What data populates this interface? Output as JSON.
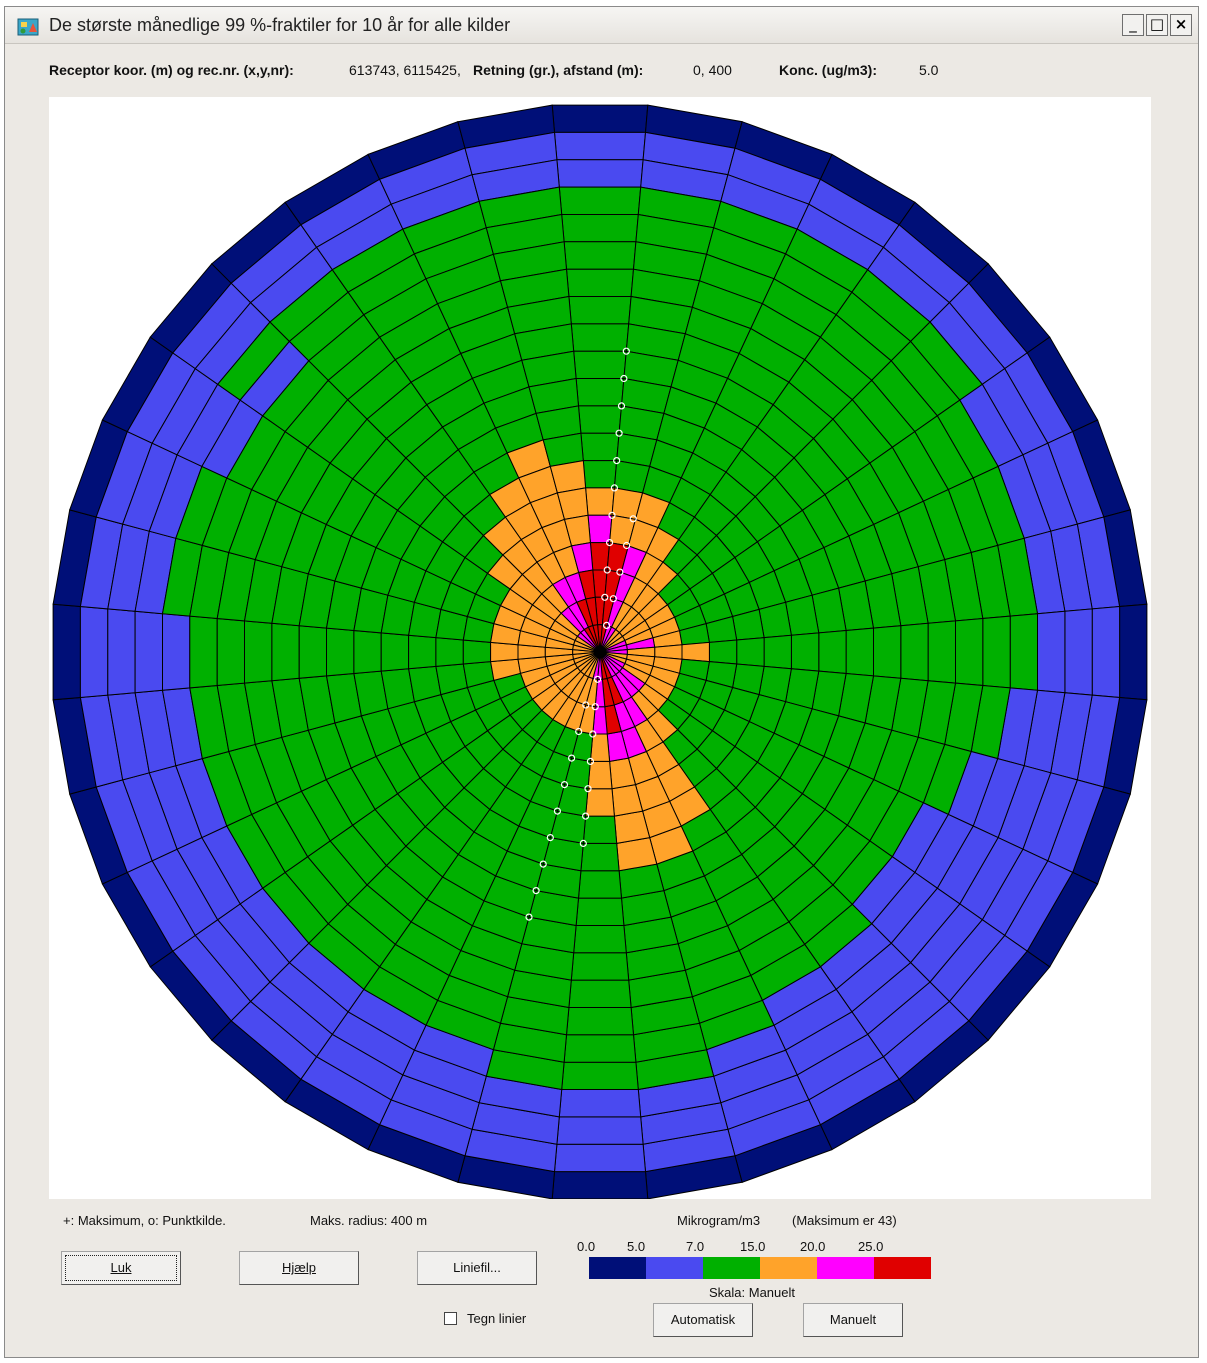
{
  "window": {
    "title": "De største månedlige 99 %-fraktiler for 10 år for alle kilder",
    "controls": {
      "minimize": "_",
      "maximize": "□",
      "close": "×"
    }
  },
  "info_bar": {
    "receptor_label": "Receptor koor. (m) og rec.nr. (x,y,nr):",
    "receptor_value": "613743, 6115425,",
    "direction_label": "Retning (gr.), afstand (m):",
    "direction_value": "0, 400",
    "conc_label": "Konc. (ug/m3):",
    "conc_value": "5.0"
  },
  "footer": {
    "legend_markers": "+: Maksimum, o: Punktkilde.",
    "max_radius": "Maks. radius: 400 m",
    "unit": "Mikrogram/m3",
    "maximum": "(Maksimum er 43)",
    "scale_mode": "Skala: Manuelt",
    "draw_lines_label": "Tegn linier"
  },
  "buttons": {
    "close": "Luk",
    "help": "Hjælp",
    "lines": "Liniefil...",
    "auto": "Automatisk",
    "manual": "Manuelt"
  },
  "color_scale": {
    "thresholds": [
      "0.0",
      "5.0",
      "7.0",
      "15.0",
      "20.0",
      "25.0"
    ],
    "colors": [
      "#000f78",
      "#4a4af0",
      "#00b000",
      "#ffa32a",
      "#ff00ff",
      "#e00000"
    ]
  },
  "chart_data": {
    "type": "heatmap",
    "grid": "polar",
    "sectors": 36,
    "rings": 20,
    "max_radius_m": 400,
    "grid_lines": true,
    "cells_by_ring": [
      [
        "d",
        "d",
        "d",
        "d",
        "d",
        "d",
        "d",
        "d",
        "d",
        "d",
        "d",
        "d",
        "d",
        "d",
        "d",
        "d",
        "d",
        "d",
        "d",
        "d",
        "d",
        "d",
        "d",
        "d",
        "d",
        "d",
        "d",
        "d",
        "d",
        "d",
        "d",
        "d",
        "d",
        "d",
        "d",
        "d"
      ],
      [
        "b",
        "b",
        "b",
        "b",
        "b",
        "b",
        "b",
        "b",
        "b",
        "b",
        "b",
        "b",
        "b",
        "b",
        "b",
        "b",
        "b",
        "b",
        "b",
        "b",
        "b",
        "b",
        "b",
        "b",
        "b",
        "b",
        "b",
        "b",
        "b",
        "b",
        "b",
        "b",
        "b",
        "b",
        "b",
        "b"
      ],
      [
        "b",
        "b",
        "b",
        "b",
        "b",
        "b",
        "b",
        "b",
        "b",
        "b",
        "b",
        "b",
        "b",
        "b",
        "b",
        "b",
        "b",
        "b",
        "b",
        "b",
        "b",
        "b",
        "b",
        "b",
        "b",
        "b",
        "b",
        "b",
        "b",
        "b",
        "b",
        "b",
        "b",
        "b",
        "b",
        "b"
      ],
      [
        "g",
        "g",
        "g",
        "g",
        "g",
        "g",
        "b",
        "b",
        "b",
        "b",
        "b",
        "b",
        "b",
        "b",
        "b",
        "b",
        "b",
        "b",
        "b",
        "b",
        "b",
        "b",
        "b",
        "b",
        "b",
        "b",
        "b",
        "b",
        "b",
        "b",
        "b",
        "g",
        "g",
        "g",
        "g",
        "g"
      ],
      [
        "g",
        "g",
        "g",
        "g",
        "g",
        "g",
        "g",
        "g",
        "g",
        "g",
        "b",
        "b",
        "b",
        "b",
        "b",
        "b",
        "b",
        "g",
        "g",
        "g",
        "b",
        "b",
        "b",
        "b",
        "b",
        "b",
        "b",
        "b",
        "g",
        "g",
        "b",
        "b",
        "g",
        "g",
        "g",
        "g"
      ],
      [
        "g",
        "g",
        "g",
        "g",
        "g",
        "g",
        "g",
        "g",
        "g",
        "g",
        "g",
        "b",
        "b",
        "b",
        "b",
        "b",
        "g",
        "g",
        "g",
        "g",
        "g",
        "g",
        "g",
        "g",
        "g",
        "g",
        "g",
        "g",
        "g",
        "g",
        "g",
        "g",
        "g",
        "g",
        "g",
        "g"
      ],
      [
        "g",
        "g",
        "g",
        "g",
        "g",
        "g",
        "g",
        "g",
        "g",
        "g",
        "g",
        "g",
        "b",
        "b",
        "g",
        "g",
        "g",
        "g",
        "g",
        "g",
        "g",
        "g",
        "g",
        "g",
        "g",
        "g",
        "g",
        "g",
        "g",
        "g",
        "g",
        "g",
        "g",
        "g",
        "g",
        "g"
      ],
      [
        "g",
        "g",
        "g",
        "g",
        "g",
        "g",
        "g",
        "g",
        "g",
        "g",
        "g",
        "g",
        "g",
        "g",
        "g",
        "g",
        "g",
        "g",
        "g",
        "g",
        "g",
        "g",
        "g",
        "g",
        "g",
        "g",
        "g",
        "g",
        "g",
        "g",
        "g",
        "g",
        "g",
        "g",
        "g",
        "g"
      ],
      [
        "g",
        "g",
        "g",
        "g",
        "g",
        "g",
        "g",
        "g",
        "g",
        "g",
        "g",
        "g",
        "g",
        "g",
        "g",
        "g",
        "g",
        "g",
        "g",
        "g",
        "g",
        "g",
        "g",
        "g",
        "g",
        "g",
        "g",
        "g",
        "g",
        "g",
        "g",
        "g",
        "g",
        "g",
        "g",
        "g"
      ],
      [
        "g",
        "g",
        "g",
        "g",
        "g",
        "g",
        "g",
        "g",
        "g",
        "g",
        "g",
        "g",
        "g",
        "g",
        "g",
        "g",
        "g",
        "g",
        "g",
        "g",
        "g",
        "g",
        "g",
        "g",
        "g",
        "g",
        "g",
        "g",
        "g",
        "g",
        "g",
        "g",
        "g",
        "g",
        "g",
        "g"
      ],
      [
        "g",
        "g",
        "g",
        "g",
        "g",
        "g",
        "g",
        "g",
        "g",
        "g",
        "g",
        "g",
        "g",
        "g",
        "g",
        "g",
        "g",
        "g",
        "g",
        "g",
        "g",
        "g",
        "g",
        "g",
        "g",
        "g",
        "g",
        "g",
        "g",
        "g",
        "g",
        "g",
        "g",
        "g",
        "g",
        "g"
      ],
      [
        "g",
        "g",
        "g",
        "g",
        "g",
        "g",
        "g",
        "g",
        "g",
        "g",
        "g",
        "g",
        "g",
        "g",
        "g",
        "g",
        "g",
        "g",
        "g",
        "g",
        "g",
        "g",
        "g",
        "g",
        "g",
        "g",
        "g",
        "g",
        "g",
        "g",
        "g",
        "g",
        "g",
        "g",
        "g",
        "g"
      ],
      [
        "g",
        "g",
        "g",
        "g",
        "g",
        "g",
        "g",
        "g",
        "g",
        "g",
        "g",
        "g",
        "g",
        "g",
        "g",
        "g",
        "o",
        "o",
        "g",
        "g",
        "g",
        "g",
        "g",
        "g",
        "g",
        "g",
        "g",
        "g",
        "g",
        "g",
        "g",
        "g",
        "g",
        "g",
        "o",
        "g"
      ],
      [
        "g",
        "g",
        "g",
        "g",
        "g",
        "g",
        "g",
        "g",
        "g",
        "g",
        "g",
        "g",
        "g",
        "g",
        "g",
        "o",
        "o",
        "o",
        "g",
        "g",
        "g",
        "g",
        "g",
        "g",
        "g",
        "g",
        "g",
        "g",
        "g",
        "g",
        "g",
        "g",
        "g",
        "o",
        "o",
        "o"
      ],
      [
        "o",
        "o",
        "o",
        "g",
        "g",
        "g",
        "g",
        "g",
        "g",
        "g",
        "g",
        "g",
        "g",
        "g",
        "g",
        "o",
        "o",
        "o",
        "o",
        "g",
        "g",
        "g",
        "g",
        "g",
        "g",
        "g",
        "g",
        "g",
        "g",
        "g",
        "g",
        "g",
        "o",
        "o",
        "o",
        "o"
      ],
      [
        "p",
        "o",
        "o",
        "o",
        "g",
        "g",
        "g",
        "g",
        "g",
        "g",
        "g",
        "g",
        "g",
        "g",
        "g",
        "o",
        "o",
        "o",
        "o",
        "g",
        "g",
        "g",
        "g",
        "g",
        "g",
        "g",
        "g",
        "g",
        "g",
        "g",
        "g",
        "o",
        "o",
        "o",
        "o",
        "o"
      ],
      [
        "r",
        "r",
        "p",
        "o",
        "o",
        "g",
        "g",
        "g",
        "g",
        "o",
        "g",
        "g",
        "g",
        "g",
        "o",
        "o",
        "p",
        "p",
        "o",
        "g",
        "g",
        "g",
        "g",
        "g",
        "g",
        "g",
        "o",
        "o",
        "o",
        "o",
        "o",
        "o",
        "o",
        "o",
        "o",
        "p"
      ],
      [
        "r",
        "r",
        "p",
        "o",
        "o",
        "o",
        "o",
        "o",
        "o",
        "o",
        "o",
        "o",
        "o",
        "o",
        "o",
        "p",
        "p",
        "r",
        "p",
        "o",
        "o",
        "o",
        "o",
        "o",
        "o",
        "o",
        "o",
        "o",
        "o",
        "o",
        "o",
        "o",
        "o",
        "p",
        "p",
        "r"
      ],
      [
        "r",
        "r",
        "p",
        "o",
        "o",
        "o",
        "o",
        "o",
        "p",
        "o",
        "o",
        "o",
        "o",
        "p",
        "p",
        "p",
        "r",
        "r",
        "p",
        "o",
        "o",
        "o",
        "o",
        "o",
        "o",
        "o",
        "o",
        "o",
        "o",
        "o",
        "o",
        "o",
        "p",
        "p",
        "r",
        "r"
      ],
      [
        "r",
        "r",
        "p",
        "p",
        "o",
        "o",
        "o",
        "p",
        "p",
        "p",
        "o",
        "o",
        "p",
        "p",
        "p",
        "p",
        "r",
        "r",
        "p",
        "p",
        "o",
        "o",
        "o",
        "o",
        "o",
        "o",
        "o",
        "o",
        "o",
        "o",
        "o",
        "p",
        "p",
        "r",
        "r",
        "r"
      ]
    ]
  }
}
